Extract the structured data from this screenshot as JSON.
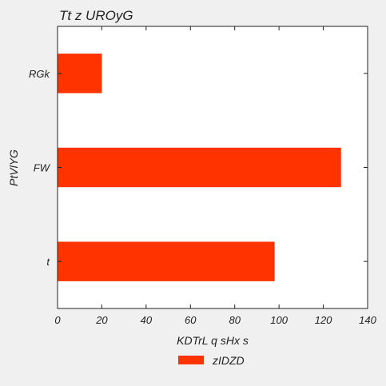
{
  "chart_data": {
    "type": "bar",
    "orientation": "horizontal",
    "title": "Tt z UROyG",
    "xlabel": "KDTrL q sHx s",
    "ylabel": "PtVlYG",
    "categories": [
      "t",
      "FW",
      "RGk"
    ],
    "series": [
      {
        "name": "zIDZD",
        "values": [
          98,
          128,
          20
        ],
        "color": "#ff3300"
      }
    ],
    "xlim": [
      0,
      140
    ],
    "xticks": [
      0,
      20,
      40,
      60,
      80,
      100,
      120,
      140
    ],
    "grid": false,
    "legend": "bottom-center"
  }
}
